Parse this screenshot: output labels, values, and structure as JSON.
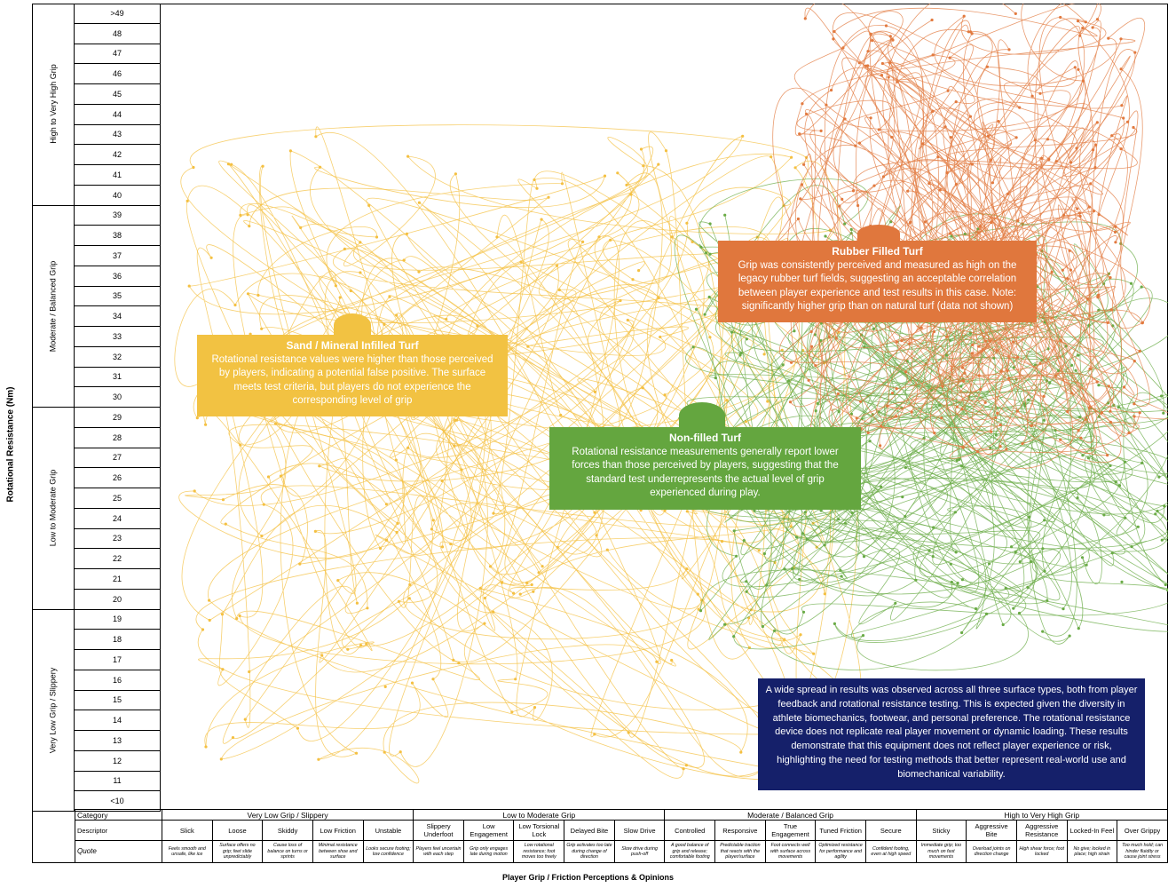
{
  "chart_data": {
    "type": "scatter",
    "title": "",
    "xlabel": "Player Grip / Friction Perceptions & Opinions",
    "ylabel": "Rotational Resistance (Nm)",
    "y_ticks": [
      ">49",
      "48",
      "47",
      "46",
      "45",
      "44",
      "43",
      "42",
      "41",
      "40",
      "39",
      "38",
      "37",
      "36",
      "35",
      "34",
      "33",
      "32",
      "31",
      "30",
      "29",
      "28",
      "27",
      "26",
      "25",
      "24",
      "23",
      "22",
      "21",
      "20",
      "19",
      "18",
      "17",
      "16",
      "15",
      "14",
      "13",
      "12",
      "11",
      "<10"
    ],
    "y_categories": [
      {
        "label": "High to Very High Grip",
        "range": [
          40,
          49
        ]
      },
      {
        "label": "Moderate / Balanced Grip",
        "range": [
          30,
          39
        ]
      },
      {
        "label": "Low to Moderate Grip",
        "range": [
          20,
          29
        ]
      },
      {
        "label": "Very Low Grip / Slippery",
        "range": [
          10,
          19
        ]
      }
    ],
    "x_categories": [
      {
        "label": "Very Low Grip / Slippery",
        "descriptors": [
          "Slick",
          "Loose",
          "Skiddy",
          "Low Friction",
          "Unstable"
        ],
        "quotes": [
          "Feels smooth and unsafe, like ice",
          "Surface offers no grip; feet slide unpredictably",
          "Cause loss of balance on turns or sprints",
          "Minimal resistance between shoe and surface",
          "Looks secure footing; low confidence"
        ]
      },
      {
        "label": "Low to Moderate Grip",
        "descriptors": [
          "Slippery Underfoot",
          "Low Engagement",
          "Low Torsional Lock",
          "Delayed Bite",
          "Slow Drive"
        ],
        "quotes": [
          "Players feel uncertain with each step",
          "Grip only engages late during motion",
          "Low rotational resistance; foot moves too freely",
          "Grip activates too late during change of direction",
          "Slow drive during push-off"
        ]
      },
      {
        "label": "Moderate / Balanced Grip",
        "descriptors": [
          "Controlled",
          "Responsive",
          "True Engagement",
          "Tuned Friction",
          "Secure"
        ],
        "quotes": [
          "A good balance of grip and release; comfortable footing",
          "Predictable traction that reacts with the player/surface",
          "Foot connects well with surface across movements",
          "Optimized resistance for performance and agility",
          "Confident footing, even at high speed"
        ]
      },
      {
        "label": "High to Very High Grip",
        "descriptors": [
          "Sticky",
          "Aggressive Bite",
          "Aggressive Resistance",
          "Locked-In Feel",
          "Over Grippy"
        ],
        "quotes": [
          "Immediate grip; too much on fast movements",
          "Overload joints on direction change",
          "High shear force; foot locked",
          "No give; locked in place; high strain",
          "Too much hold; can hinder fluidity or cause joint stress"
        ]
      }
    ],
    "table_row_labels": [
      "Category",
      "Descriptor",
      "Quote"
    ],
    "series": [
      {
        "name": "Sand / Mineral Infilled Turf",
        "color": "#F4C042",
        "x_range": [
          1,
          14
        ],
        "y_range": [
          11,
          43
        ]
      },
      {
        "name": "Non-filled Turf",
        "color": "#6AAB46",
        "x_range": [
          11,
          21
        ],
        "y_range": [
          18,
          39
        ]
      },
      {
        "name": "Rubber Filled Turf",
        "color": "#E27A3F",
        "x_range": [
          13,
          20
        ],
        "y_range": [
          27,
          49
        ]
      }
    ],
    "legend": "none",
    "grid": false
  },
  "annotations": {
    "sand": {
      "title": "Sand / Mineral Infilled Turf",
      "text": "Rotational resistance values were higher than those perceived by players, indicating a potential false positive. The surface meets test criteria, but players do not experience the corresponding level of grip",
      "color": "#F2C242"
    },
    "rubber": {
      "title": "Rubber Filled Turf",
      "text": "Grip was consistently perceived and measured as high on the legacy rubber turf fields, suggesting an acceptable correlation between player experience and test results in this case. Note: significantly higher grip than on natural turf (data not shown)",
      "color": "#E0773D"
    },
    "nonfilled": {
      "title": "Non-filled Turf",
      "text": "Rotational resistance measurements generally report lower forces than those perceived by players, suggesting that the standard test underrepresents the actual level of grip experienced during play.",
      "color": "#64A63F"
    },
    "summary": {
      "text": "A wide spread in results was observed across all three surface types, both from player feedback and rotational resistance testing. This is expected given the diversity in athlete biomechanics, footwear, and personal preference. The rotational resistance device does not replicate real player movement or dynamic loading. These results demonstrate that this equipment does not reflect player experience or risk, highlighting the need for testing methods that better represent real-world use and biomechanical variability.",
      "color": "#15206A"
    }
  }
}
